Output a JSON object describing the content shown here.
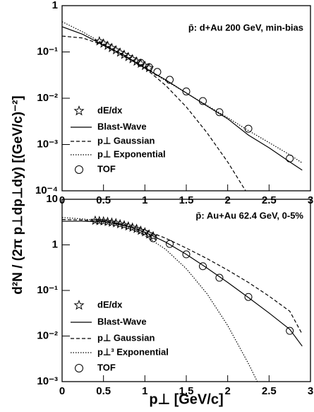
{
  "x_label": "p⊥ [GeV/c]",
  "y_label": "d²N / (2π p⊥dp⊥dy) [(GeV/c)⁻²]",
  "chart_data": [
    {
      "type": "line",
      "annotation": "p̄: d+Au 200 GeV, min-bias",
      "log_y": true,
      "xlim": [
        0,
        3
      ],
      "xticks": [
        0,
        0.5,
        1,
        1.5,
        2,
        2.5,
        3
      ],
      "ylim": [
        0.0001,
        1
      ],
      "yticks": [
        {
          "value": 1,
          "label": "1"
        },
        {
          "value": 0.1,
          "label": "10⁻¹"
        },
        {
          "value": 0.01,
          "label": "10⁻²"
        },
        {
          "value": 0.001,
          "label": "10⁻³"
        },
        {
          "value": 0.0001,
          "label": "10⁻⁴"
        }
      ],
      "series": [
        {
          "name": "dE/dx",
          "style": "stars",
          "color": "#000000",
          "x": [
            0.45,
            0.5,
            0.55,
            0.6,
            0.65,
            0.7,
            0.75,
            0.8,
            0.85,
            0.9,
            0.95,
            1.0,
            1.05
          ],
          "values": [
            0.17,
            0.152,
            0.136,
            0.122,
            0.109,
            0.097,
            0.087,
            0.078,
            0.07,
            0.062,
            0.056,
            0.05,
            0.045
          ]
        },
        {
          "name": "Blast-Wave",
          "style": "solid",
          "color": "#000000",
          "x": [
            0,
            0.25,
            0.5,
            0.75,
            1,
            1.25,
            1.5,
            1.75,
            2,
            2.25,
            2.5,
            2.75,
            2.9
          ],
          "values": [
            0.35,
            0.24,
            0.14,
            0.085,
            0.045,
            0.025,
            0.013,
            0.0068,
            0.0036,
            0.0016,
            0.00085,
            0.00042,
            0.00028
          ]
        },
        {
          "name": "p⊥ Gaussian",
          "style": "dashed",
          "color": "#000000",
          "x": [
            0,
            0.25,
            0.5,
            0.75,
            1,
            1.25,
            1.5,
            1.75,
            2,
            2.25
          ],
          "values": [
            0.22,
            0.2,
            0.14,
            0.085,
            0.045,
            0.019,
            0.0065,
            0.0018,
            0.00042,
            8e-05
          ]
        },
        {
          "name": "p⊥ Exponential",
          "style": "dotted",
          "color": "#000000",
          "x": [
            0,
            0.25,
            0.5,
            0.75,
            1,
            1.25,
            1.5,
            1.75,
            2,
            2.25,
            2.5,
            2.75,
            2.9
          ],
          "values": [
            0.45,
            0.27,
            0.15,
            0.083,
            0.045,
            0.024,
            0.013,
            0.007,
            0.0038,
            0.002,
            0.0011,
            0.0006,
            0.0004
          ]
        },
        {
          "name": "TOF",
          "style": "circles",
          "color": "#000000",
          "x": [
            0.95,
            1.05,
            1.15,
            1.3,
            1.5,
            1.7,
            1.9,
            2.25,
            2.75
          ],
          "values": [
            0.058,
            0.047,
            0.037,
            0.025,
            0.014,
            0.0087,
            0.005,
            0.0022,
            0.0005
          ]
        }
      ]
    },
    {
      "type": "line",
      "annotation": "p̄: Au+Au 62.4 GeV, 0-5%",
      "log_y": true,
      "xlim": [
        0,
        3
      ],
      "xticks": [
        0,
        0.5,
        1,
        1.5,
        2,
        2.5,
        3
      ],
      "ylim": [
        0.001,
        10
      ],
      "yticks": [
        10,
        {
          "value": 1,
          "label": "1"
        },
        {
          "value": 0.1,
          "label": "10⁻¹"
        },
        {
          "value": 0.01,
          "label": "10⁻²"
        },
        {
          "value": 0.001,
          "label": "10⁻³"
        }
      ],
      "series": [
        {
          "name": "dE/dx",
          "style": "stars",
          "color": "#000000",
          "x": [
            0.4,
            0.45,
            0.5,
            0.55,
            0.6,
            0.65,
            0.7,
            0.75,
            0.8,
            0.85,
            0.9,
            0.95,
            1.0,
            1.05,
            1.1
          ],
          "values": [
            3.4,
            3.35,
            3.3,
            3.2,
            3.1,
            3.0,
            2.85,
            2.7,
            2.55,
            2.4,
            2.25,
            2.05,
            1.9,
            1.7,
            1.55
          ]
        },
        {
          "name": "Blast-Wave",
          "style": "solid",
          "color": "#000000",
          "x": [
            0,
            0.25,
            0.5,
            0.75,
            1,
            1.25,
            1.5,
            1.75,
            2,
            2.25,
            2.5,
            2.75,
            2.9
          ],
          "values": [
            3.3,
            3.3,
            3.2,
            2.7,
            1.9,
            1.15,
            0.62,
            0.31,
            0.15,
            0.07,
            0.032,
            0.014,
            0.006
          ]
        },
        {
          "name": "p⊥ Gaussian",
          "style": "dashed",
          "color": "#000000",
          "x": [
            0,
            0.25,
            0.5,
            0.75,
            1,
            1.25,
            1.5,
            1.75,
            2,
            2.25,
            2.5,
            2.75,
            2.9
          ],
          "values": [
            3.6,
            3.5,
            3.3,
            2.8,
            2.1,
            1.4,
            0.85,
            0.5,
            0.28,
            0.15,
            0.075,
            0.035,
            0.011
          ]
        },
        {
          "name": "p⊥³ Exponential",
          "style": "dotted",
          "color": "#000000",
          "x": [
            0,
            0.25,
            0.5,
            0.75,
            1,
            1.25,
            1.5,
            1.75,
            2,
            2.25,
            2.5
          ],
          "values": [
            4.0,
            3.7,
            3.3,
            2.6,
            1.6,
            0.8,
            0.3,
            0.085,
            0.017,
            0.0025,
            0.0003
          ]
        },
        {
          "name": "TOF",
          "style": "circles",
          "color": "#000000",
          "x": [
            1.1,
            1.3,
            1.5,
            1.7,
            1.9,
            2.25,
            2.75
          ],
          "values": [
            1.4,
            1.05,
            0.62,
            0.34,
            0.19,
            0.072,
            0.013
          ]
        }
      ]
    }
  ]
}
